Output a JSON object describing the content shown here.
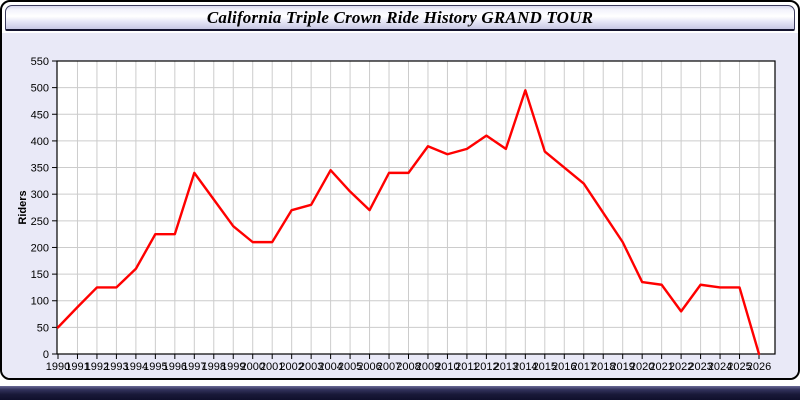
{
  "header": {
    "title": "California Triple Crown Ride History GRAND TOUR"
  },
  "colors": {
    "line": "#ff0000",
    "plot_background": "#ffffff",
    "grid": "#cccccc",
    "panel_background": "#e9e9f7",
    "axis": "#000000"
  },
  "chart_data": {
    "type": "line",
    "title": "California Triple Crown Ride History GRAND TOUR",
    "xlabel": "",
    "ylabel": "Riders",
    "x": [
      1990,
      1991,
      1992,
      1993,
      1994,
      1995,
      1996,
      1997,
      1998,
      1999,
      2000,
      2001,
      2002,
      2003,
      2004,
      2005,
      2006,
      2007,
      2008,
      2009,
      2010,
      2011,
      2012,
      2013,
      2014,
      2015,
      2016,
      2017,
      2018,
      2019,
      2020,
      2021,
      2022,
      2023,
      2024,
      2025,
      2026
    ],
    "values": [
      50,
      88,
      125,
      125,
      160,
      225,
      225,
      340,
      290,
      240,
      210,
      210,
      270,
      280,
      345,
      305,
      270,
      340,
      340,
      390,
      375,
      385,
      410,
      385,
      495,
      380,
      350,
      320,
      265,
      210,
      135,
      130,
      80,
      130,
      125,
      125,
      0
    ],
    "ylim": [
      0,
      550
    ],
    "ytick_step": 50,
    "grid": true,
    "legend": false,
    "line_color": "#ff0000"
  }
}
